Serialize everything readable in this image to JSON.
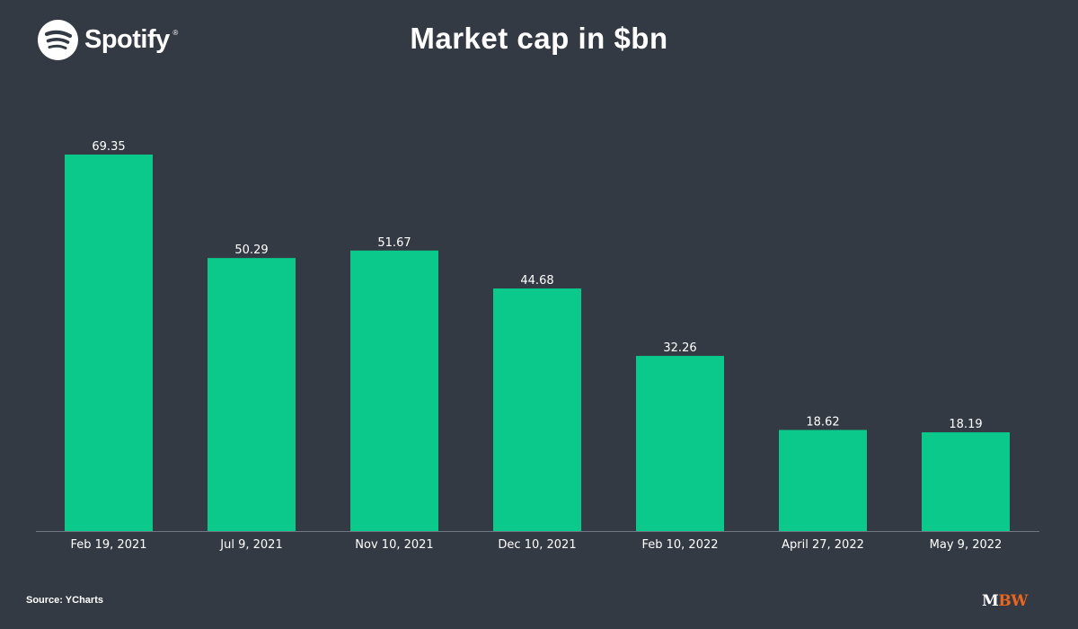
{
  "header": {
    "logo_text": "Spotify",
    "logo_mark": "®",
    "logo_icon": "spotify-logo-icon"
  },
  "chart_data": {
    "type": "bar",
    "title": "Market cap in $bn",
    "xlabel": "",
    "ylabel": "",
    "categories": [
      "Feb 19, 2021",
      "Jul 9, 2021",
      "Nov 10, 2021",
      "Dec 10, 2021",
      "Feb 10, 2022",
      "April 27, 2022",
      "May 9, 2022"
    ],
    "values": [
      69.35,
      50.29,
      51.67,
      44.68,
      32.26,
      18.62,
      18.19
    ],
    "data_labels": [
      "69.35",
      "50.29",
      "51.67",
      "44.68",
      "32.26",
      "18.62",
      "18.19"
    ],
    "ylim": [
      0,
      69.35
    ],
    "grid": false,
    "bar_color": "#0ac98b",
    "axis_color": "#707780",
    "label_color": "#ffffff"
  },
  "footer": {
    "source": "Source: YCharts",
    "brand_first": "M",
    "brand_rest": "BW",
    "brand_color": "#e8661e"
  }
}
